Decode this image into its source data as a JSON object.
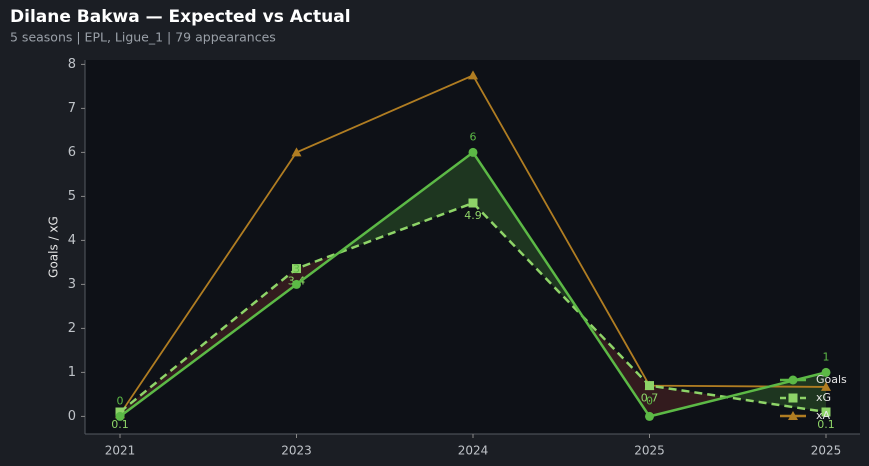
{
  "chart_data": {
    "type": "line",
    "title": "Dilane Bakwa — Expected vs Actual",
    "subtitle": "5 seasons | EPL, Ligue_1 | 79 appearances",
    "ylabel": "Goals / xG",
    "categories": [
      "2021",
      "2023",
      "2024",
      "2025",
      "2025"
    ],
    "series": [
      {
        "name": "Goals",
        "color": "#5cb946",
        "marker": "circle",
        "dash": false,
        "values": [
          0,
          3,
          6,
          0,
          1
        ],
        "labels_position": "above"
      },
      {
        "name": "xG",
        "color": "#8ed468",
        "marker": "square",
        "dash": true,
        "values": [
          0.1,
          3.36,
          4.85,
          0.7,
          0.1
        ],
        "value_labels": [
          "0.1",
          "3.4",
          "4.9",
          "0.7",
          "0.1"
        ],
        "labels_position": "below"
      },
      {
        "name": "xA",
        "color": "#b07d22",
        "marker": "triangle",
        "dash": false,
        "values": [
          0.05,
          6.0,
          7.75,
          0.7,
          0.67
        ]
      }
    ],
    "ylim": [
      -0.4,
      8.1
    ],
    "yticks": [
      0,
      1,
      2,
      3,
      4,
      5,
      6,
      7,
      8
    ],
    "legend": "lower right"
  }
}
